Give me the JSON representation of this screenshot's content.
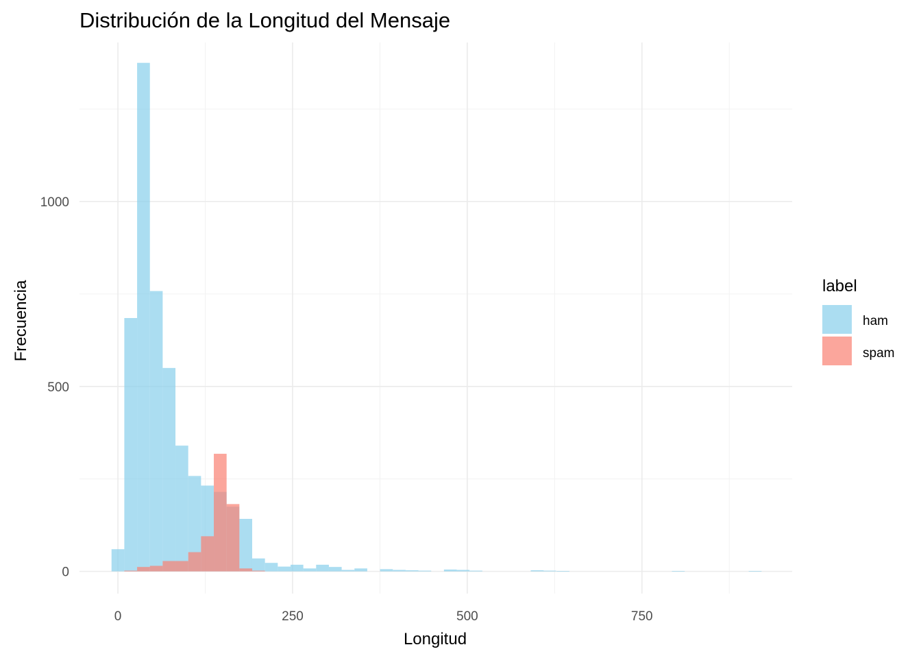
{
  "chart_data": {
    "type": "bar",
    "title": "Distribución de la Longitud del Mensaje",
    "xlabel": "Longitud",
    "ylabel": "Frecuencia",
    "xlim": [
      -55,
      965
    ],
    "ylim": [
      -60,
      1430
    ],
    "x_ticks": [
      0,
      250,
      500,
      750
    ],
    "y_ticks": [
      0,
      500,
      1000
    ],
    "grid": true,
    "bin_width": 18.3,
    "bin_start": -9.15,
    "legend": {
      "title": "label",
      "position": "right",
      "entries": [
        "ham",
        "spam"
      ]
    },
    "series": [
      {
        "name": "ham",
        "color": "#87CEEB",
        "values": [
          60,
          685,
          1375,
          758,
          550,
          340,
          258,
          232,
          215,
          175,
          142,
          35,
          23,
          13,
          18,
          8,
          18,
          12,
          4,
          8,
          0,
          6,
          4,
          3,
          2,
          0,
          5,
          4,
          2,
          0,
          0,
          0,
          0,
          0,
          0,
          0,
          0,
          0,
          0,
          0,
          0,
          0,
          0,
          0,
          0,
          0,
          0,
          0,
          0,
          0,
          0,
          0
        ]
      },
      {
        "name": "spam",
        "color": "#FA8072",
        "values": [
          0,
          2,
          12,
          15,
          28,
          28,
          52,
          95,
          318,
          182,
          8,
          2,
          0,
          0,
          0,
          0,
          0,
          0,
          0,
          0,
          0,
          0,
          0,
          0,
          0,
          0,
          0,
          0,
          0,
          0,
          0,
          0,
          0,
          0,
          0,
          0,
          0,
          0,
          0,
          0,
          0,
          0,
          0,
          0,
          0,
          0,
          0,
          0,
          0,
          0,
          0,
          0
        ]
      }
    ],
    "ham_sparse": [
      {
        "x": 600,
        "value": 3
      },
      {
        "x": 618,
        "value": 2
      },
      {
        "x": 637,
        "value": 1
      },
      {
        "x": 802,
        "value": 1
      },
      {
        "x": 912,
        "value": 1
      }
    ]
  }
}
